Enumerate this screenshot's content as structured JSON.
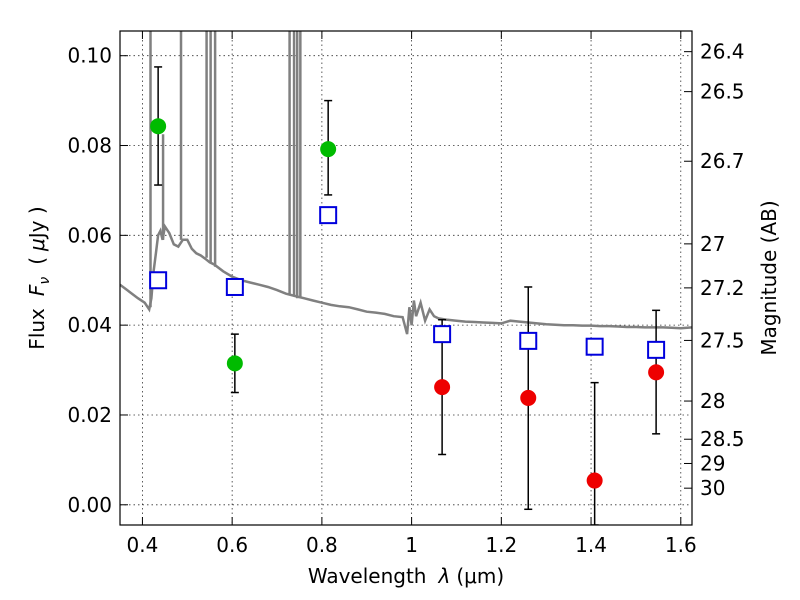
{
  "chart_data": {
    "type": "scatter",
    "xlabel_text": "Wavelength",
    "xlabel_symbol": "λ",
    "xlabel_unit": "(μm)",
    "ylabel_text": "Flux",
    "ylabel_symbol": "F",
    "ylabel_subscript": "ν",
    "ylabel_unit_open": "(",
    "ylabel_unit_mu": "μ",
    "ylabel_unit_rest": "Jy )",
    "y2label": "Magnitude (AB)",
    "xlim": [
      0.35,
      1.625
    ],
    "ylim": [
      -0.0045,
      0.1055
    ],
    "grid": true,
    "x_ticks": [
      0.4,
      0.6,
      0.8,
      1.0,
      1.2,
      1.4,
      1.6
    ],
    "x_tick_labels": [
      "0.4",
      "0.6",
      "0.8",
      "1",
      "1.2",
      "1.4",
      "1.6"
    ],
    "y_ticks": [
      0.0,
      0.02,
      0.04,
      0.06,
      0.08,
      0.1
    ],
    "y_tick_labels": [
      "0.00",
      "0.02",
      "0.04",
      "0.06",
      "0.08",
      "0.10"
    ],
    "y2_ticks": [
      {
        "label": "26.4",
        "flux": 0.1009
      },
      {
        "label": "26.5",
        "flux": 0.092
      },
      {
        "label": "26.7",
        "flux": 0.0765
      },
      {
        "label": "27",
        "flux": 0.0581
      },
      {
        "label": "27.2",
        "flux": 0.0483
      },
      {
        "label": "27.5",
        "flux": 0.0366
      },
      {
        "label": "28",
        "flux": 0.0231
      },
      {
        "label": "28.5",
        "flux": 0.0146
      },
      {
        "label": "29",
        "flux": 0.0092
      },
      {
        "label": "30",
        "flux": 0.0037
      }
    ],
    "series": [
      {
        "marker": "circle",
        "color": "#00bb00",
        "points": [
          {
            "x": 0.435,
            "y": 0.0843,
            "err_lo": 0.0712,
            "err_hi": 0.0975
          },
          {
            "x": 0.606,
            "y": 0.0315,
            "err_lo": 0.025,
            "err_hi": 0.038
          },
          {
            "x": 0.814,
            "y": 0.0792,
            "err_lo": 0.069,
            "err_hi": 0.09
          }
        ]
      },
      {
        "marker": "circle",
        "color": "#ee0000",
        "points": [
          {
            "x": 1.068,
            "y": 0.0262,
            "err_lo": 0.0112,
            "err_hi": 0.0412
          },
          {
            "x": 1.26,
            "y": 0.0238,
            "err_lo": -0.001,
            "err_hi": 0.0485
          },
          {
            "x": 1.408,
            "y": 0.0054,
            "err_lo": -0.0045,
            "err_hi": 0.0272
          },
          {
            "x": 1.545,
            "y": 0.0295,
            "err_lo": 0.0158,
            "err_hi": 0.0433
          }
        ]
      },
      {
        "marker": "square",
        "color": "#0000dd",
        "points": [
          {
            "x": 0.435,
            "y": 0.05
          },
          {
            "x": 0.606,
            "y": 0.0485
          },
          {
            "x": 0.814,
            "y": 0.0645
          },
          {
            "x": 1.068,
            "y": 0.038
          },
          {
            "x": 1.26,
            "y": 0.0365
          },
          {
            "x": 1.408,
            "y": 0.0352
          },
          {
            "x": 1.545,
            "y": 0.0345
          }
        ]
      },
      {
        "type": "line",
        "color": "#808080",
        "points": [
          [
            0.35,
            0.049
          ],
          [
            0.37,
            0.0475
          ],
          [
            0.39,
            0.046
          ],
          [
            0.405,
            0.045
          ],
          [
            0.415,
            0.0435
          ],
          [
            0.42,
            0.046
          ],
          [
            0.425,
            0.052
          ],
          [
            0.43,
            0.056
          ],
          [
            0.435,
            0.06
          ],
          [
            0.44,
            0.061
          ],
          [
            0.445,
            0.059
          ],
          [
            0.45,
            0.062
          ],
          [
            0.46,
            0.0605
          ],
          [
            0.47,
            0.058
          ],
          [
            0.48,
            0.0575
          ],
          [
            0.49,
            0.059
          ],
          [
            0.5,
            0.059
          ],
          [
            0.51,
            0.057
          ],
          [
            0.52,
            0.056
          ],
          [
            0.53,
            0.0555
          ],
          [
            0.54,
            0.0548
          ],
          [
            0.55,
            0.054
          ],
          [
            0.56,
            0.0535
          ],
          [
            0.58,
            0.052
          ],
          [
            0.6,
            0.0508
          ],
          [
            0.62,
            0.05
          ],
          [
            0.64,
            0.0495
          ],
          [
            0.66,
            0.049
          ],
          [
            0.68,
            0.0485
          ],
          [
            0.7,
            0.0478
          ],
          [
            0.72,
            0.047
          ],
          [
            0.74,
            0.0465
          ],
          [
            0.76,
            0.046
          ],
          [
            0.78,
            0.0455
          ],
          [
            0.8,
            0.045
          ],
          [
            0.82,
            0.0445
          ],
          [
            0.84,
            0.0442
          ],
          [
            0.86,
            0.044
          ],
          [
            0.88,
            0.0435
          ],
          [
            0.9,
            0.043
          ],
          [
            0.92,
            0.0428
          ],
          [
            0.94,
            0.0425
          ],
          [
            0.96,
            0.042
          ],
          [
            0.98,
            0.0418
          ],
          [
            0.99,
            0.038
          ],
          [
            0.995,
            0.044
          ],
          [
            1.0,
            0.04
          ],
          [
            1.005,
            0.0455
          ],
          [
            1.01,
            0.042
          ],
          [
            1.02,
            0.045
          ],
          [
            1.03,
            0.041
          ],
          [
            1.04,
            0.0435
          ],
          [
            1.05,
            0.042
          ],
          [
            1.06,
            0.0415
          ],
          [
            1.08,
            0.0412
          ],
          [
            1.1,
            0.041
          ],
          [
            1.12,
            0.0408
          ],
          [
            1.14,
            0.0407
          ],
          [
            1.16,
            0.0406
          ],
          [
            1.18,
            0.0405
          ],
          [
            1.2,
            0.0404
          ],
          [
            1.22,
            0.041
          ],
          [
            1.24,
            0.0408
          ],
          [
            1.26,
            0.0406
          ],
          [
            1.28,
            0.0404
          ],
          [
            1.3,
            0.0402
          ],
          [
            1.32,
            0.0401
          ],
          [
            1.34,
            0.04
          ],
          [
            1.36,
            0.04
          ],
          [
            1.38,
            0.0399
          ],
          [
            1.4,
            0.0399
          ],
          [
            1.42,
            0.0398
          ],
          [
            1.44,
            0.0398
          ],
          [
            1.46,
            0.0397
          ],
          [
            1.48,
            0.0396
          ],
          [
            1.5,
            0.0396
          ],
          [
            1.52,
            0.0395
          ],
          [
            1.54,
            0.0395
          ],
          [
            1.56,
            0.0395
          ],
          [
            1.58,
            0.0394
          ],
          [
            1.6,
            0.0393
          ],
          [
            1.625,
            0.0395
          ]
        ],
        "spikes": [
          {
            "x": 0.418,
            "base": 0.044,
            "top": 0.1055
          },
          {
            "x": 0.446,
            "base": 0.059,
            "top": 0.0825
          },
          {
            "x": 0.486,
            "base": 0.059,
            "top": 0.1055
          },
          {
            "x": 0.543,
            "base": 0.055,
            "top": 0.1055
          },
          {
            "x": 0.552,
            "base": 0.054,
            "top": 0.1055
          },
          {
            "x": 0.562,
            "base": 0.053,
            "top": 0.1055
          },
          {
            "x": 0.728,
            "base": 0.047,
            "top": 0.1055
          },
          {
            "x": 0.738,
            "base": 0.0465,
            "top": 0.1055
          },
          {
            "x": 0.745,
            "base": 0.046,
            "top": 0.1055
          },
          {
            "x": 0.752,
            "base": 0.046,
            "top": 0.1055
          }
        ]
      }
    ]
  }
}
